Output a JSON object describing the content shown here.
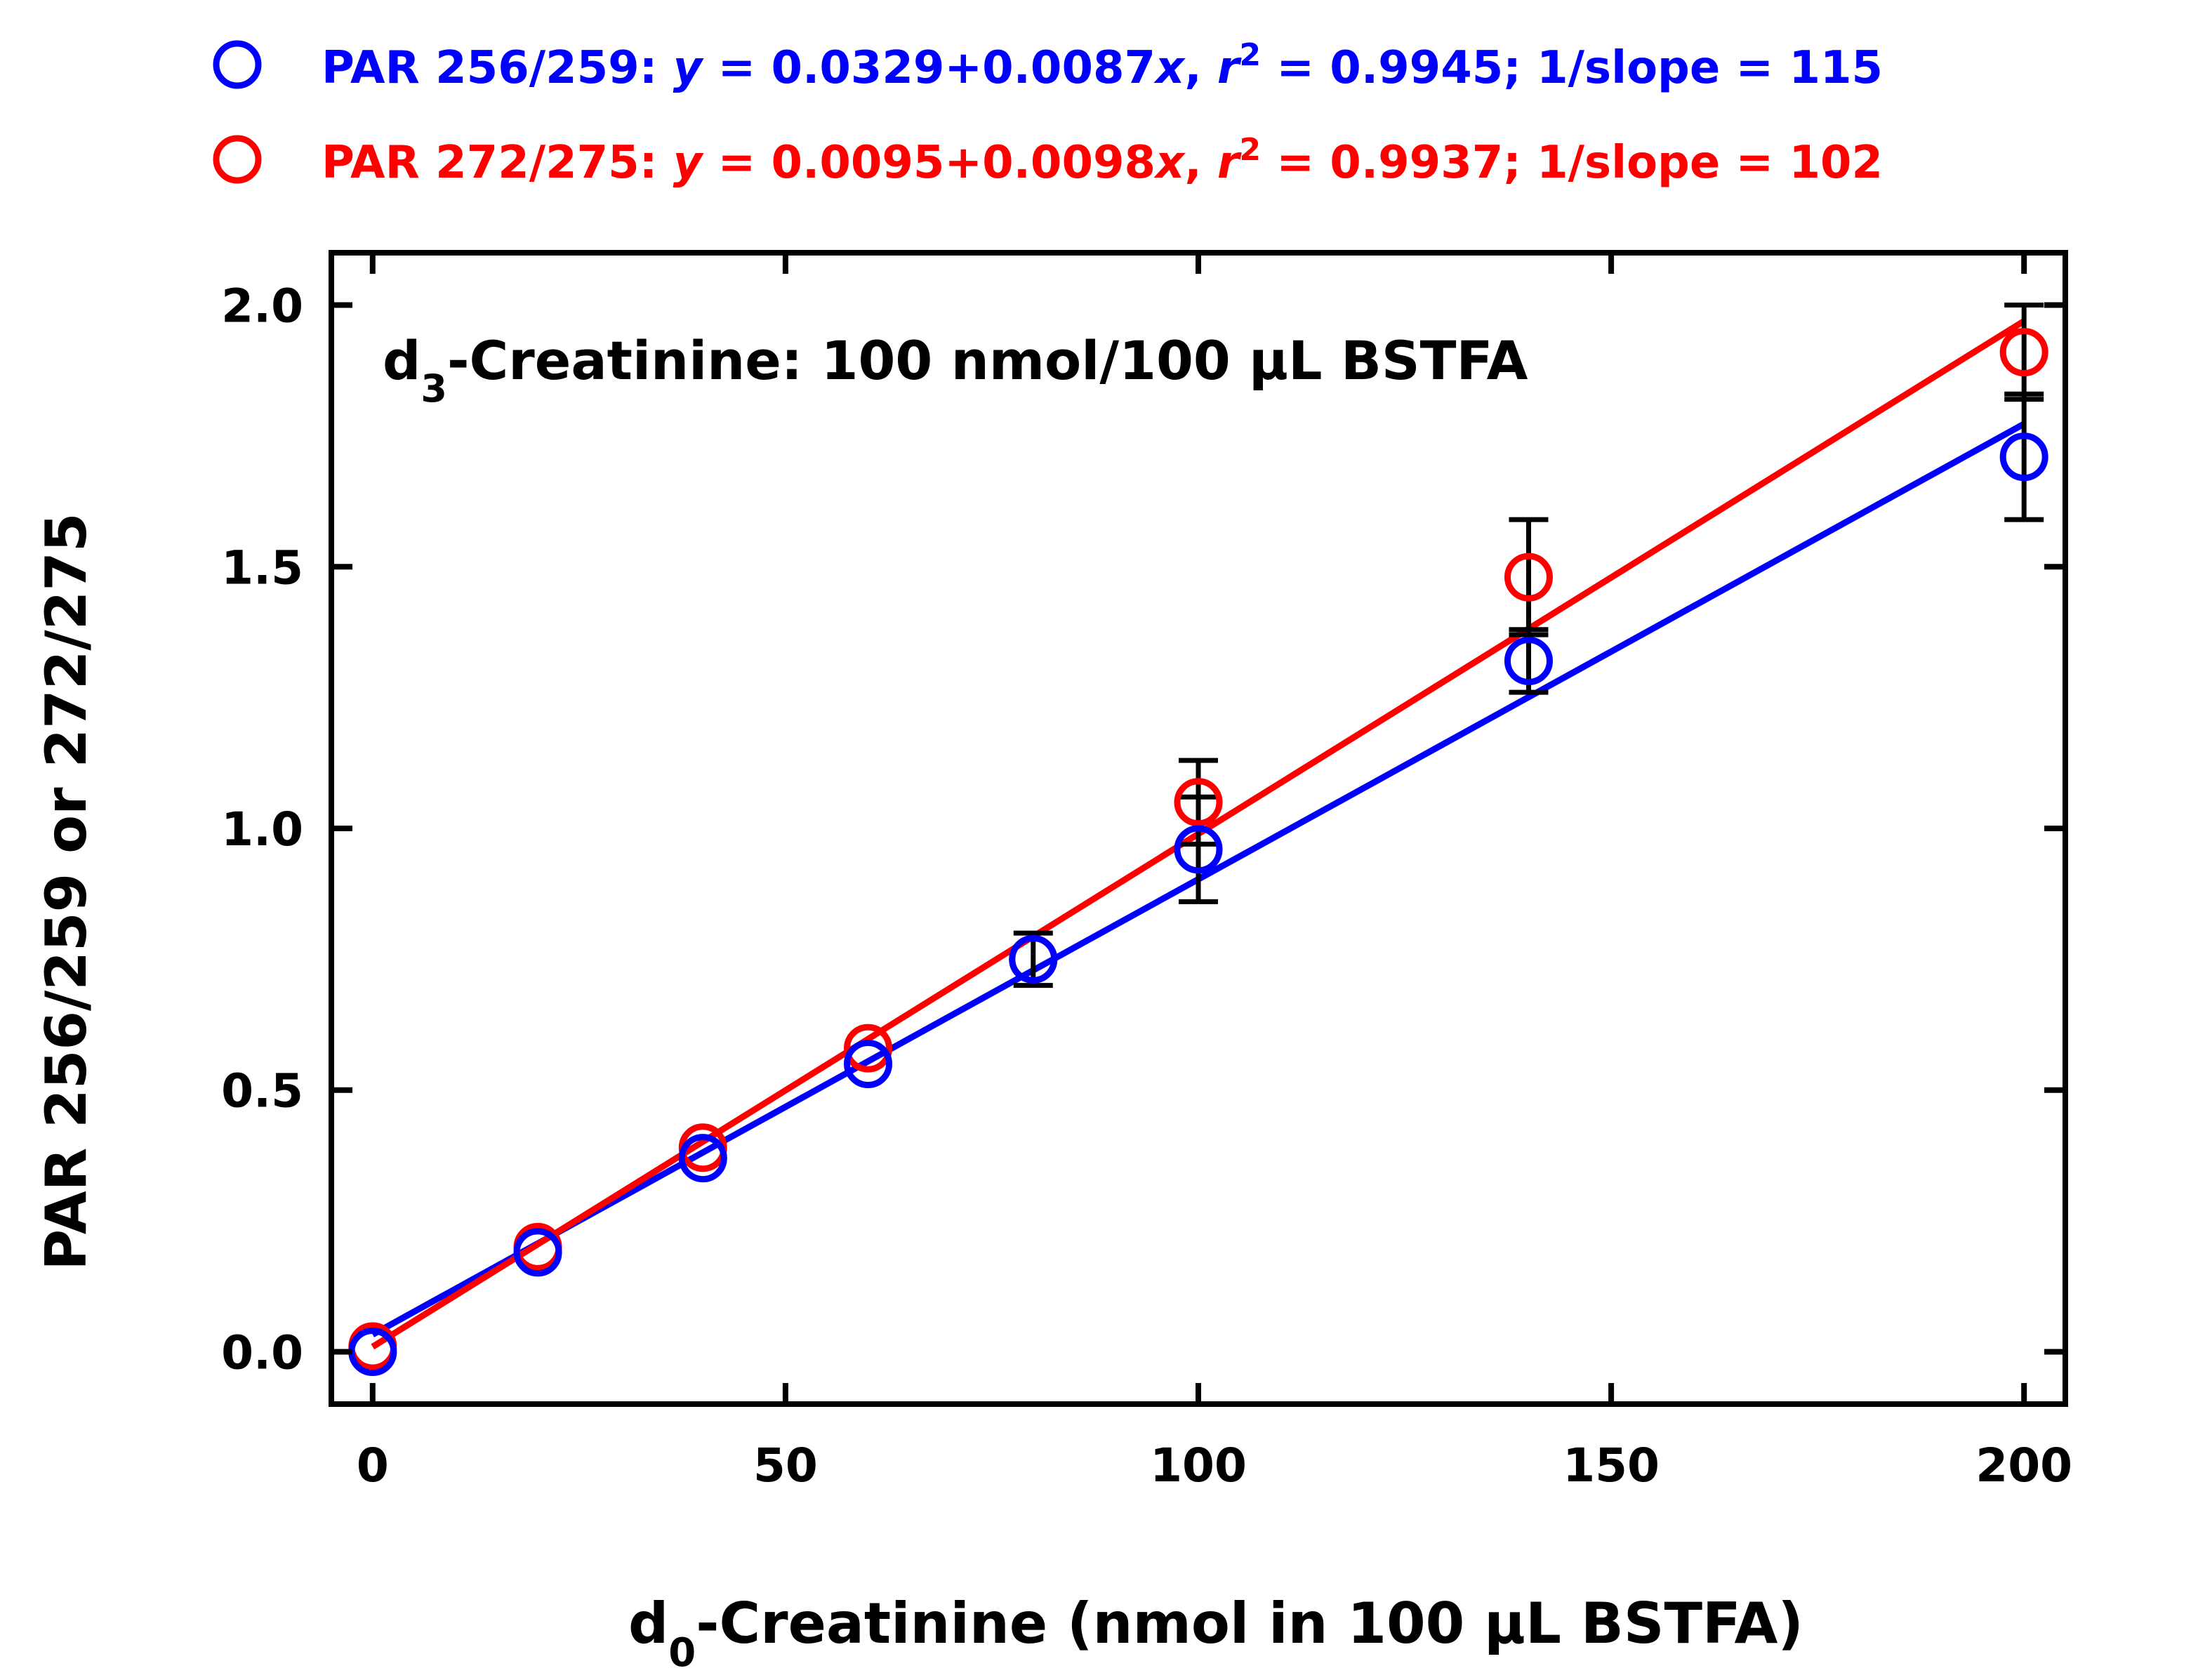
{
  "chart_data": {
    "type": "scatter",
    "title": "d3-Creatinine: 100 nmol/100 µL BSTFA",
    "title_parts": {
      "pre": "d",
      "sub": "3",
      "post": "-Creatinine: 100 nmol/100 µL BSTFA"
    },
    "xlabel": "d0-Creatinine (nmol in 100 µL BSTFA)",
    "xlabel_parts": {
      "pre": "d",
      "sub": "0",
      "post": "-Creatinine (nmol in 100 µL BSTFA)"
    },
    "ylabel": "PAR 256/259 or 272/275",
    "xlim": [
      -5,
      205
    ],
    "ylim": [
      -0.1,
      2.1
    ],
    "xticks": [
      0,
      50,
      100,
      150,
      200
    ],
    "xtick_labels": [
      "0",
      "50",
      "100",
      "150",
      "200"
    ],
    "yticks": [
      0.0,
      0.5,
      1.0,
      1.5,
      2.0
    ],
    "ytick_labels": [
      "0.0",
      "0.5",
      "1.0",
      "1.5",
      "2.0"
    ],
    "grid": false,
    "legend_position": "top",
    "series": [
      {
        "name": "PAR 256/259",
        "color": "#0000ff",
        "fit": {
          "intercept": 0.0329,
          "slope": 0.0087
        },
        "legend": {
          "label": "PAR 256/259: ",
          "y": "y",
          "eq1": " = 0.0329+0.0087",
          "x": "x",
          "comma": ", ",
          "r": "r",
          "exp": "2",
          "stats": " = 0.9945; 1/slope = 115"
        },
        "x": [
          0,
          20,
          40,
          60,
          80,
          100,
          140,
          200
        ],
        "y": [
          0.0,
          0.19,
          0.37,
          0.55,
          0.75,
          0.96,
          1.32,
          1.71
        ],
        "err": [
          null,
          null,
          null,
          null,
          0.05,
          0.1,
          0.06,
          0.12
        ]
      },
      {
        "name": "PAR 272/275",
        "color": "#ff0000",
        "fit": {
          "intercept": 0.0095,
          "slope": 0.0098
        },
        "legend": {
          "label": "PAR 272/275: ",
          "y": "y",
          "eq1": " = 0.0095+0.0098",
          "x": "x",
          "comma": ", ",
          "r": "r",
          "exp": "2",
          "stats": " = 0.9937; 1/slope = 102"
        },
        "x": [
          0,
          20,
          40,
          60,
          80,
          100,
          140,
          200
        ],
        "y": [
          0.01,
          0.2,
          0.39,
          0.58,
          0.75,
          1.05,
          1.48,
          1.91
        ],
        "err": [
          null,
          null,
          null,
          null,
          null,
          0.08,
          0.11,
          0.09
        ]
      }
    ]
  }
}
